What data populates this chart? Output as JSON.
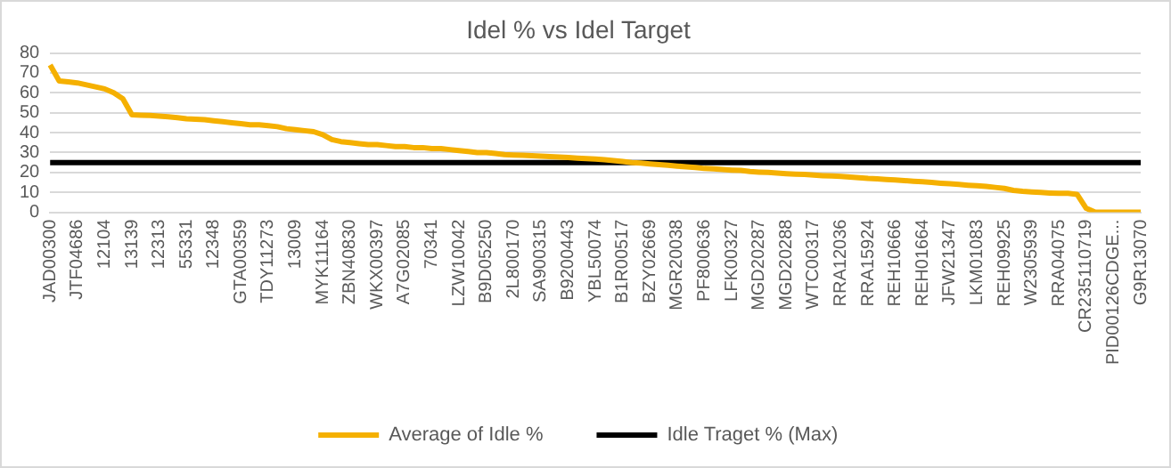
{
  "chart_data": {
    "type": "line",
    "title": "Idel % vs Idel Target",
    "categories": [
      "JAD00300",
      null,
      null,
      "JTF04686",
      null,
      null,
      "12104",
      null,
      null,
      "13139",
      null,
      null,
      "12313",
      null,
      null,
      "55331",
      null,
      null,
      "12348",
      null,
      null,
      "GTA00359",
      null,
      null,
      "TDY11273",
      null,
      null,
      "13009",
      null,
      null,
      "MYK11164",
      null,
      null,
      "ZBN40830",
      null,
      null,
      "WKX00397",
      null,
      null,
      "A7G02085",
      null,
      null,
      "70341",
      null,
      null,
      "LZW10042",
      null,
      null,
      "B9D05250",
      null,
      null,
      "2L800170",
      null,
      null,
      "SA900315",
      null,
      null,
      "B9200443",
      null,
      null,
      "YBL50074",
      null,
      null,
      "B1R00517",
      null,
      null,
      "BZY02669",
      null,
      null,
      "MGR20038",
      null,
      null,
      "PF800636",
      null,
      null,
      "LFK00327",
      null,
      null,
      "MGD20287",
      null,
      null,
      "MGD20288",
      null,
      null,
      "WTC00317",
      null,
      null,
      "RRA12036",
      null,
      null,
      "RRA15924",
      null,
      null,
      "REH10666",
      null,
      null,
      "REH01664",
      null,
      null,
      "JFW21347",
      null,
      null,
      "LKM01083",
      null,
      null,
      "REH09925",
      null,
      null,
      "W2305939",
      null,
      null,
      "RRA04075",
      null,
      null,
      "CR235110719",
      null,
      null,
      "PID00126CDGE...",
      null,
      null,
      "G9R13070"
    ],
    "series": [
      {
        "name": "Average of Idle %",
        "color": "#f5b000",
        "values": [
          74,
          66,
          65.5,
          65,
          64,
          63,
          62,
          60,
          57,
          49,
          48.8,
          48.6,
          48.3,
          48,
          47.5,
          47,
          46.8,
          46.5,
          46,
          45.5,
          45,
          44.5,
          44,
          44,
          43.5,
          43,
          42,
          41.5,
          41,
          40.5,
          39,
          36.5,
          35.5,
          35,
          34.5,
          34,
          34,
          33.5,
          33,
          33,
          32.5,
          32.5,
          32,
          32,
          31.5,
          31,
          30.5,
          30,
          30,
          29.5,
          29,
          28.8,
          28.6,
          28.4,
          28.2,
          28,
          27.8,
          27.5,
          27.2,
          27,
          26.7,
          26.4,
          26,
          25.5,
          25,
          24.7,
          24.3,
          24,
          23.6,
          23.2,
          22.8,
          22.5,
          22,
          21.8,
          21.5,
          21.2,
          21,
          20.5,
          20.2,
          20,
          19.7,
          19.4,
          19.2,
          19,
          18.7,
          18.4,
          18.2,
          18,
          17.7,
          17.4,
          17,
          16.8,
          16.5,
          16.2,
          15.9,
          15.6,
          15.3,
          15,
          14.6,
          14.3,
          14,
          13.6,
          13.3,
          13,
          12.5,
          12,
          11,
          10.5,
          10.2,
          10,
          9.7,
          9.5,
          9.5,
          9,
          2,
          0,
          0,
          0,
          0,
          0,
          0
        ]
      },
      {
        "name": "Idle Traget % (Max)",
        "color": "#000000",
        "values": [
          25,
          25,
          25,
          25,
          25,
          25,
          25,
          25,
          25,
          25,
          25,
          25,
          25,
          25,
          25,
          25,
          25,
          25,
          25,
          25,
          25,
          25,
          25,
          25,
          25,
          25,
          25,
          25,
          25,
          25,
          25,
          25,
          25,
          25,
          25,
          25,
          25,
          25,
          25,
          25,
          25,
          25,
          25,
          25,
          25,
          25,
          25,
          25,
          25,
          25,
          25,
          25,
          25,
          25,
          25,
          25,
          25,
          25,
          25,
          25,
          25,
          25,
          25,
          25,
          25,
          25,
          25,
          25,
          25,
          25,
          25,
          25,
          25,
          25,
          25,
          25,
          25,
          25,
          25,
          25,
          25,
          25,
          25,
          25,
          25,
          25,
          25,
          25,
          25,
          25,
          25,
          25,
          25,
          25,
          25,
          25,
          25,
          25,
          25,
          25,
          25,
          25,
          25,
          25,
          25,
          25,
          25,
          25,
          25,
          25,
          25,
          25,
          25,
          25,
          25,
          25,
          25,
          25,
          25,
          25,
          25
        ]
      }
    ],
    "ylim": [
      0,
      80
    ],
    "yticks": [
      0,
      10,
      20,
      30,
      40,
      50,
      60,
      70,
      80
    ],
    "grid": "y",
    "legend": "bottom",
    "marker": "none",
    "line_style": "solid"
  }
}
